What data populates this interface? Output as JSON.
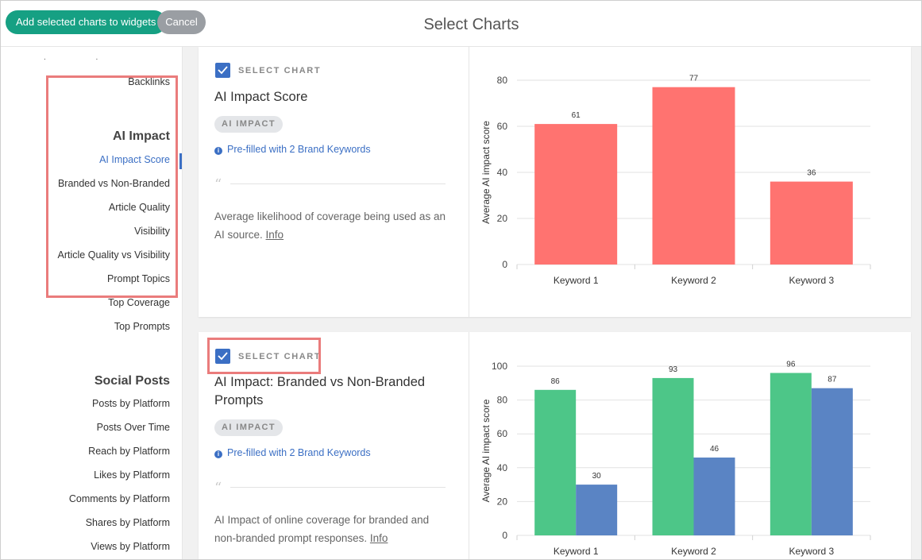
{
  "header": {
    "add_button": "Add selected charts to widgets",
    "cancel_button": "Cancel",
    "title": "Select Charts"
  },
  "sidebar": {
    "dots": ". .",
    "top_item": "Backlinks",
    "groups": [
      {
        "heading": "AI Impact",
        "items": [
          "AI Impact Score",
          "Branded vs Non-Branded",
          "Article Quality",
          "Visibility",
          "Article Quality vs Visibility",
          "Prompt Topics",
          "Top Coverage",
          "Top Prompts"
        ],
        "active": "AI Impact Score"
      },
      {
        "heading": "Social Posts",
        "items": [
          "Posts by Platform",
          "Posts Over Time",
          "Reach by Platform",
          "Likes by Platform",
          "Comments by Platform",
          "Shares by Platform",
          "Views by Platform"
        ]
      }
    ]
  },
  "cards": [
    {
      "select_label": "SELECT CHART",
      "title": "AI Impact Score",
      "badge": "AI IMPACT",
      "prefill": "Pre-filled with 2 Brand Keywords",
      "description": "Average likelihood of coverage being used as an AI source.",
      "info_link": "Info"
    },
    {
      "select_label": "SELECT CHART",
      "title": "AI Impact: Branded vs Non-Branded Prompts",
      "badge": "AI IMPACT",
      "prefill": "Pre-filled with 2 Brand Keywords",
      "description": "AI Impact of online coverage for branded and non-branded prompt responses.",
      "info_link": "Info"
    }
  ],
  "chart_data": [
    {
      "type": "bar",
      "categories": [
        "Keyword 1",
        "Keyword 2",
        "Keyword 3"
      ],
      "series": [
        {
          "values": [
            61,
            77,
            36
          ],
          "color": "#ff7370"
        }
      ],
      "ylabel": "Average AI impact score",
      "ylim": [
        0,
        80
      ],
      "yticks": [
        0,
        20,
        40,
        60,
        80
      ],
      "grid": true,
      "data_labels": true
    },
    {
      "type": "bar",
      "categories": [
        "Keyword 1",
        "Keyword 2",
        "Keyword 3"
      ],
      "series": [
        {
          "values": [
            86,
            93,
            96
          ],
          "color": "#4dc688"
        },
        {
          "values": [
            30,
            46,
            87
          ],
          "color": "#5a84c4"
        }
      ],
      "ylabel": "Average AI impact score",
      "ylim": [
        0,
        100
      ],
      "yticks": [
        0,
        20,
        40,
        60,
        80,
        100
      ],
      "grid": true,
      "data_labels": true
    }
  ]
}
